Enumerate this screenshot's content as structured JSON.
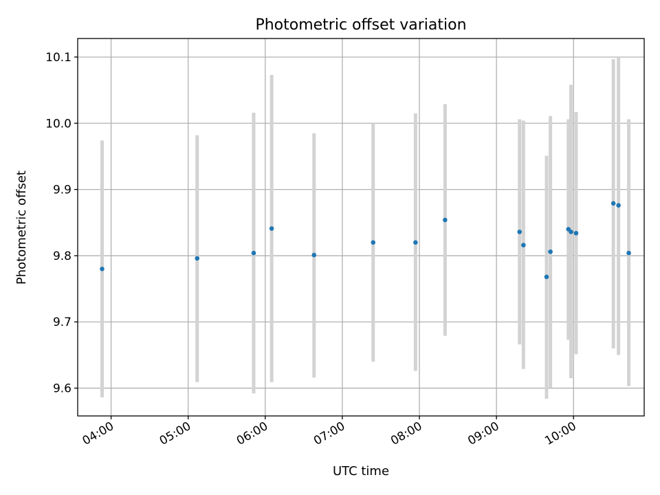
{
  "chart_data": {
    "type": "scatter",
    "title": "Photometric offset variation",
    "xlabel": "UTC time",
    "ylabel": "Photometric offset",
    "x_axis_type": "time",
    "xlim": [
      "03:34",
      "10:55"
    ],
    "ylim": [
      9.558,
      10.128
    ],
    "grid": true,
    "x_ticks": [
      "04:00",
      "05:00",
      "06:00",
      "07:00",
      "08:00",
      "09:00",
      "10:00"
    ],
    "y_ticks": [
      "9.6",
      "9.7",
      "9.8",
      "9.9",
      "10.0",
      "10.1"
    ],
    "errorbar_color": "#d3d3d3",
    "point_color": "#1f77b4",
    "series": [
      {
        "points": [
          {
            "x": "03:53",
            "y": 9.78,
            "ylow": 9.586,
            "yhigh": 9.974
          },
          {
            "x": "05:07",
            "y": 9.796,
            "ylow": 9.609,
            "yhigh": 9.982
          },
          {
            "x": "05:51",
            "y": 9.804,
            "ylow": 9.592,
            "yhigh": 10.016
          },
          {
            "x": "06:05",
            "y": 9.841,
            "ylow": 9.609,
            "yhigh": 10.073
          },
          {
            "x": "06:38",
            "y": 9.801,
            "ylow": 9.616,
            "yhigh": 9.985
          },
          {
            "x": "07:24",
            "y": 9.82,
            "ylow": 9.64,
            "yhigh": 10.0
          },
          {
            "x": "07:57",
            "y": 9.82,
            "ylow": 9.626,
            "yhigh": 10.015
          },
          {
            "x": "08:20",
            "y": 9.854,
            "ylow": 9.679,
            "yhigh": 10.029
          },
          {
            "x": "09:18",
            "y": 9.836,
            "ylow": 9.666,
            "yhigh": 10.006
          },
          {
            "x": "09:21",
            "y": 9.816,
            "ylow": 9.629,
            "yhigh": 10.004
          },
          {
            "x": "09:39",
            "y": 9.768,
            "ylow": 9.584,
            "yhigh": 9.951
          },
          {
            "x": "09:42",
            "y": 9.806,
            "ylow": 9.601,
            "yhigh": 10.011
          },
          {
            "x": "09:56",
            "y": 9.84,
            "ylow": 9.673,
            "yhigh": 10.006
          },
          {
            "x": "09:58",
            "y": 9.836,
            "ylow": 9.615,
            "yhigh": 10.058
          },
          {
            "x": "10:02",
            "y": 9.834,
            "ylow": 9.651,
            "yhigh": 10.017
          },
          {
            "x": "10:31",
            "y": 9.879,
            "ylow": 9.66,
            "yhigh": 10.097
          },
          {
            "x": "10:35",
            "y": 9.876,
            "ylow": 9.65,
            "yhigh": 10.101
          },
          {
            "x": "10:43",
            "y": 9.804,
            "ylow": 9.603,
            "yhigh": 10.006
          }
        ]
      }
    ]
  }
}
